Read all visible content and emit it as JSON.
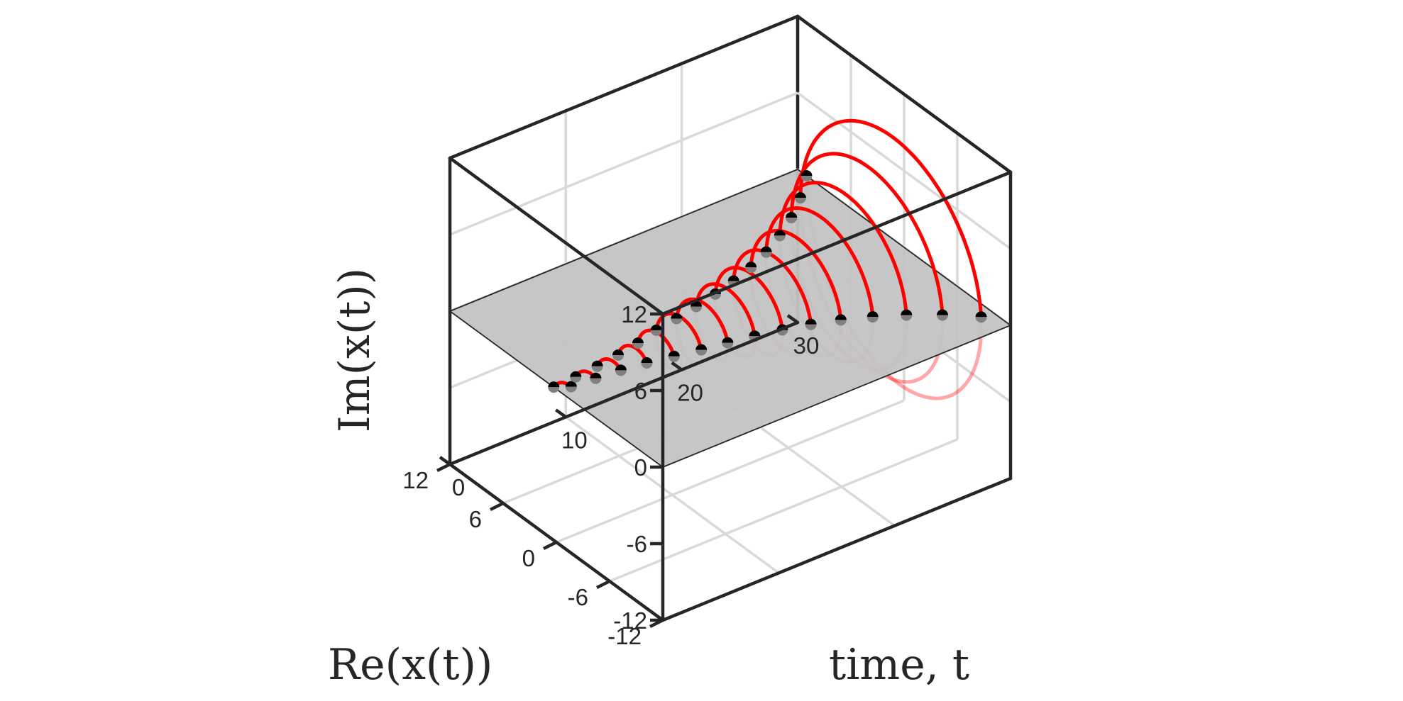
{
  "chart_data": {
    "type": "line3d",
    "title": "",
    "xlabel": "Re(x(t))",
    "ylabel": "time, t",
    "zlabel": "Im(x(t))",
    "axes": {
      "re_ticks": [
        "12",
        "6",
        "0",
        "-6",
        "-12"
      ],
      "re_tick_values": [
        12,
        6,
        0,
        -6,
        -12
      ],
      "time_ticks": [
        "0",
        "10",
        "20",
        "30"
      ],
      "time_tick_values": [
        0,
        10,
        20,
        30
      ],
      "im_ticks": [
        "12",
        "6",
        "0",
        "-6",
        "-12"
      ],
      "im_tick_values": [
        12,
        6,
        0,
        -6,
        -12
      ],
      "re_range": [
        -12,
        12
      ],
      "time_range": [
        0,
        30
      ],
      "im_range": [
        -12,
        12
      ],
      "grid": true
    },
    "series": [
      {
        "role": "complex-trajectory",
        "color": "#ff0000",
        "description_of_function": "spiral x(t) = r(t)·e^{i·2πt/2}, radius growing with t",
        "t_start": 0,
        "t_end": 30,
        "period": 2,
        "radius_samples": [
          {
            "t": 0,
            "r": 0.3
          },
          {
            "t": 10,
            "r": 1.8
          },
          {
            "t": 20,
            "r": 4.2
          },
          {
            "t": 30,
            "r": 11.0
          }
        ]
      },
      {
        "role": "sample-markers",
        "color": "#000000",
        "secondary_color": "#808080",
        "sample_interval": 1
      }
    ],
    "plane": {
      "im_value": 0,
      "color": "#c3c3c3"
    }
  }
}
